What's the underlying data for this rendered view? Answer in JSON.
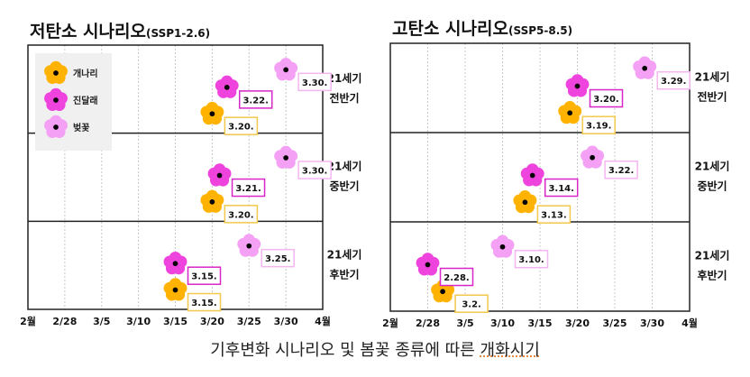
{
  "figure": {
    "caption_prefix": "기후변화 시나리오 및 봄꽃 종류에 따른 ",
    "caption_suffix": "개화시기"
  },
  "legend": {
    "items": [
      {
        "name": "개나리",
        "color": "#FFB300"
      },
      {
        "name": "진달래",
        "color": "#EE44DD"
      },
      {
        "name": "벚꽃",
        "color": "#F4A0F4"
      }
    ],
    "background": "#F0F0F0"
  },
  "chart_data": [
    {
      "type": "scatter",
      "title": "저탄소 시나리오",
      "subtitle": "(SSP1-2.6)",
      "xlabel": "",
      "ylabel": "",
      "x_tick_labels": [
        "2월",
        "2/28",
        "3/5",
        "3/10",
        "3/15",
        "3/20",
        "3/25",
        "3/30",
        "4월"
      ],
      "x_tick_values": [
        -5,
        0,
        5,
        10,
        15,
        20,
        25,
        30,
        35
      ],
      "x_units": "days after Feb 28",
      "xlim": [
        -5,
        35
      ],
      "grid": "vertical dotted",
      "legend_position": "top-left",
      "rows": [
        {
          "label_line1": "21세기",
          "label_line2": "전반기",
          "points": [
            {
              "species": "개나리",
              "x": 20,
              "label": "3.20."
            },
            {
              "species": "진달래",
              "x": 22,
              "label": "3.22."
            },
            {
              "species": "벚꽃",
              "x": 30,
              "label": "3.30."
            }
          ]
        },
        {
          "label_line1": "21세기",
          "label_line2": "중반기",
          "points": [
            {
              "species": "개나리",
              "x": 20,
              "label": "3.20."
            },
            {
              "species": "진달래",
              "x": 21,
              "label": "3.21."
            },
            {
              "species": "벚꽃",
              "x": 30,
              "label": "3.30."
            }
          ]
        },
        {
          "label_line1": "21세기",
          "label_line2": "후반기",
          "points": [
            {
              "species": "개나리",
              "x": 15,
              "label": "3.15."
            },
            {
              "species": "진달래",
              "x": 15,
              "label": "3.15."
            },
            {
              "species": "벚꽃",
              "x": 25,
              "label": "3.25."
            }
          ]
        }
      ]
    },
    {
      "type": "scatter",
      "title": "고탄소 시나리오",
      "subtitle": "(SSP5-8.5)",
      "xlabel": "",
      "ylabel": "",
      "x_tick_labels": [
        "2월",
        "2/28",
        "3/5",
        "3/10",
        "3/15",
        "3/20",
        "3/25",
        "3/30",
        "4월"
      ],
      "x_tick_values": [
        -5,
        0,
        5,
        10,
        15,
        20,
        25,
        30,
        35
      ],
      "x_units": "days after Feb 28",
      "xlim": [
        -5,
        35
      ],
      "grid": "vertical dotted",
      "legend_position": "none",
      "rows": [
        {
          "label_line1": "21세기",
          "label_line2": "전반기",
          "points": [
            {
              "species": "개나리",
              "x": 19,
              "label": "3.19."
            },
            {
              "species": "진달래",
              "x": 20,
              "label": "3.20."
            },
            {
              "species": "벚꽃",
              "x": 29,
              "label": "3.29."
            }
          ]
        },
        {
          "label_line1": "21세기",
          "label_line2": "중반기",
          "points": [
            {
              "species": "개나리",
              "x": 13,
              "label": "3.13."
            },
            {
              "species": "진달래",
              "x": 14,
              "label": "3.14."
            },
            {
              "species": "벚꽃",
              "x": 22,
              "label": "3.22."
            }
          ]
        },
        {
          "label_line1": "21세기",
          "label_line2": "후반기",
          "points": [
            {
              "species": "개나리",
              "x": 2,
              "label": "3.2."
            },
            {
              "species": "진달래",
              "x": 0,
              "label": "2.28."
            },
            {
              "species": "벚꽃",
              "x": 10,
              "label": "3.10."
            }
          ]
        }
      ]
    }
  ]
}
